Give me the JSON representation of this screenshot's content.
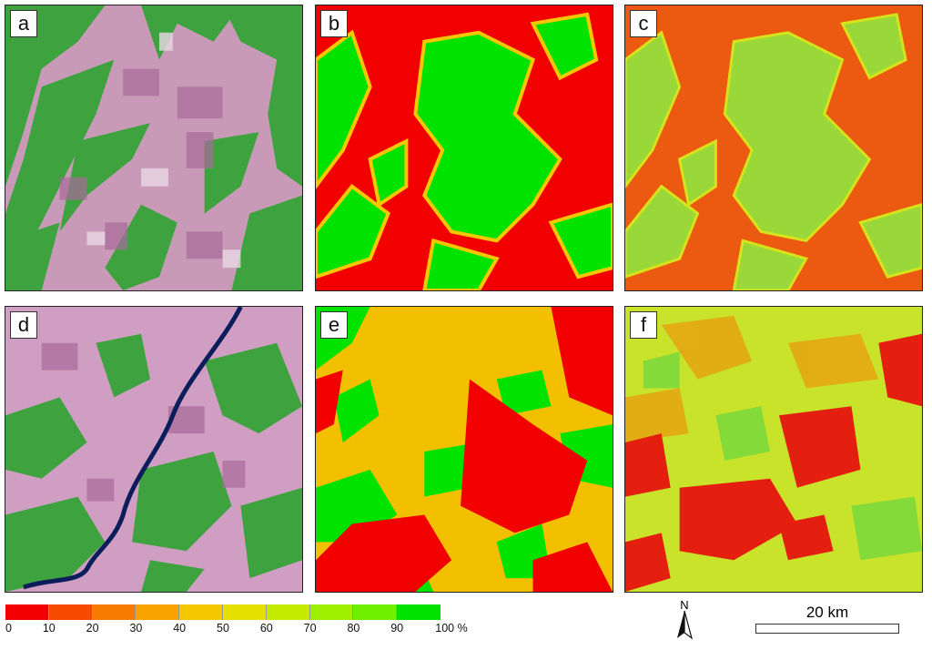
{
  "panels": [
    {
      "label": "a",
      "kind": "satellite"
    },
    {
      "label": "b",
      "kind": "classified"
    },
    {
      "label": "c",
      "kind": "classified"
    },
    {
      "label": "d",
      "kind": "satellite"
    },
    {
      "label": "e",
      "kind": "classified"
    },
    {
      "label": "f",
      "kind": "classified"
    }
  ],
  "legend": {
    "colors": [
      "#f20000",
      "#f54a00",
      "#f77b00",
      "#f9a300",
      "#f4c700",
      "#e6e000",
      "#c5ec00",
      "#9ef000",
      "#6ef000",
      "#00e200"
    ],
    "labels": [
      "0",
      "10",
      "20",
      "30",
      "40",
      "50",
      "60",
      "70",
      "80",
      "90",
      "100 %"
    ]
  },
  "north_arrow": {
    "label": "N"
  },
  "scale_bar": {
    "label": "20  km"
  }
}
